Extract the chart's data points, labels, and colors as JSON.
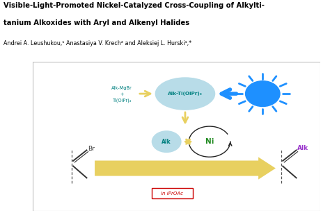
{
  "title_line1": "Visible-Light-Promoted Nickel-Catalyzed Cross-Coupling of Alkylti-",
  "title_line2": "tanium Alkoxides with Aryl and Alkenyl Halides",
  "authors": "Andrei A. Leushukou,¹ Anastasiya V. Krech² and Aleksiej L. Hurski¹,*",
  "cyan_circle_color": "#b8dce8",
  "blue_sun_color": "#1e90ff",
  "sun_rays_color": "#1e90ff",
  "yellow_color": "#e8d060",
  "blue_arrow_color": "#1e90ff",
  "text_teal": "#008080",
  "text_purple": "#9933cc",
  "text_ni": "#228B22",
  "red_outline": "#cc0000",
  "iPrOAc_label": "in iPrOAc",
  "bubble_label": "Alk-Ti(OiPr)₃",
  "bottom_bubble_label": "Alk",
  "ni_label": "Ni",
  "br_label": "Br",
  "alk_label_purple": "Alk",
  "reagent_line1": "Alk-MgBr",
  "reagent_line2": "+",
  "reagent_line3": "Ti(OiPr)₄"
}
